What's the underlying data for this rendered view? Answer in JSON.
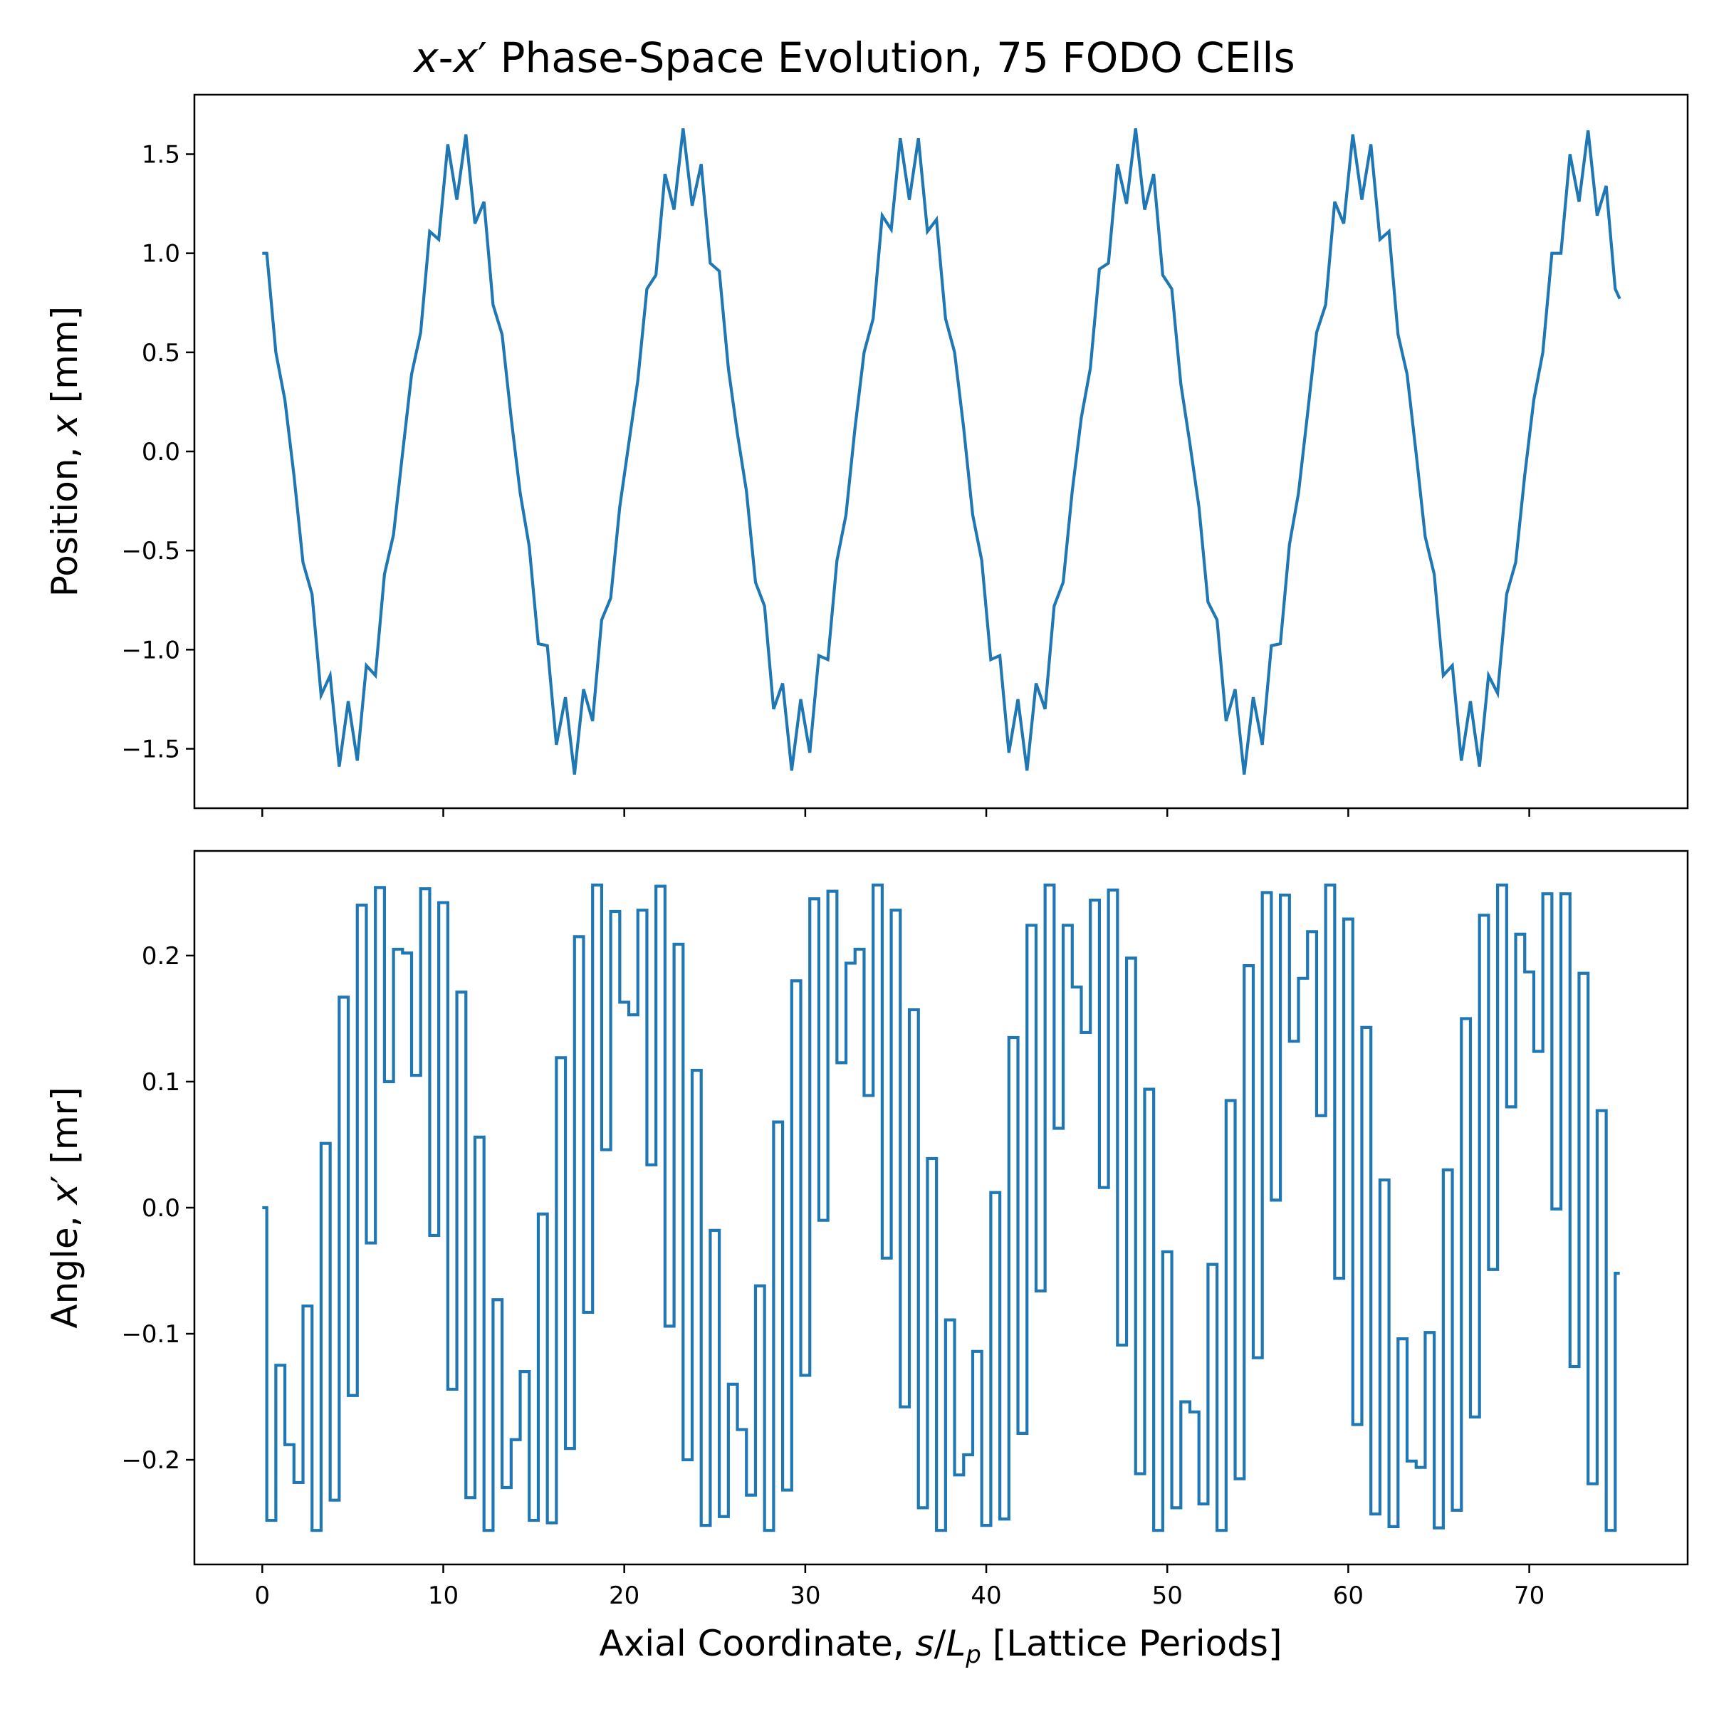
{
  "figure": {
    "title_parts": [
      "x",
      "-",
      "x",
      "′",
      " Phase-Space Evolution, 75 FODO CElls"
    ],
    "xlabel_parts": [
      "Axial Coordinate, ",
      "s",
      "/",
      "L",
      "p",
      " [Lattice Periods]"
    ]
  },
  "colors": {
    "series": "#1f77b4",
    "axes": "#000000",
    "background": "#ffffff"
  },
  "chart_data": [
    {
      "type": "line",
      "ylabel_parts": [
        "Position, ",
        "x",
        " [mm]"
      ],
      "xlim": [
        -3.75,
        78.75
      ],
      "ylim": [
        -1.8,
        1.8
      ],
      "xticks": [
        0,
        10,
        20,
        30,
        40,
        50,
        60,
        70
      ],
      "xtick_labels_visible": false,
      "yticks": [
        -1.5,
        -1.0,
        -0.5,
        0.0,
        0.5,
        1.0,
        1.5
      ],
      "ytick_labels": [
        "−1.5",
        "−1.0",
        "−0.5",
        "0.0",
        "0.5",
        "1.0",
        "1.5"
      ],
      "grid": false,
      "series": [
        {
          "x": [
            0,
            0.25,
            0.75,
            1.25,
            1.75,
            2.25,
            2.75,
            3.25,
            3.75,
            4.25,
            4.75,
            5.25,
            5.75,
            6.25,
            6.75,
            7.25,
            7.75,
            8.25,
            8.75,
            9.25,
            9.75,
            10.25,
            10.75,
            11.25,
            11.75,
            12.25,
            12.75,
            13.25,
            13.75,
            14.25,
            14.75,
            15.25,
            15.75,
            16.25,
            16.75,
            17.25,
            17.75,
            18.25,
            18.75,
            19.25,
            19.75,
            20.25,
            20.75,
            21.25,
            21.75,
            22.25,
            22.75,
            23.25,
            23.75,
            24.25,
            24.75,
            25.25,
            25.75,
            26.25,
            26.75,
            27.25,
            27.75,
            28.25,
            28.75,
            29.25,
            29.75,
            30.25,
            30.75,
            31.25,
            31.75,
            32.25,
            32.75,
            33.25,
            33.75,
            34.25,
            34.75,
            35.25,
            35.75,
            36.25,
            36.75,
            37.25,
            37.75,
            38.25,
            38.75,
            39.25,
            39.75,
            40.25,
            40.75,
            41.25,
            41.75,
            42.25,
            42.75,
            43.25,
            43.75,
            44.25,
            44.75,
            45.25,
            45.75,
            46.25,
            46.75,
            47.25,
            47.75,
            48.25,
            48.75,
            49.25,
            49.75,
            50.25,
            50.75,
            51.25,
            51.75,
            52.25,
            52.75,
            53.25,
            53.75,
            54.25,
            54.75,
            55.25,
            55.75,
            56.25,
            56.75,
            57.25,
            57.75,
            58.25,
            58.75,
            59.25,
            59.75,
            60.25,
            60.75,
            61.25,
            61.75,
            62.25,
            62.75,
            63.25,
            63.75,
            64.25,
            64.75,
            65.25,
            65.75,
            66.25,
            66.75,
            67.25,
            67.75,
            68.25,
            68.75,
            69.25,
            69.75,
            70.25,
            70.75,
            71.25,
            71.75,
            72.25,
            72.75,
            73.25,
            73.75,
            74.25,
            74.75,
            75
          ],
          "values": [
            1.0,
            1.0,
            0.5,
            0.26,
            -0.12,
            -0.56,
            -0.72,
            -1.23,
            -1.13,
            -1.59,
            -1.26,
            -1.56,
            -1.08,
            -1.13,
            -0.62,
            -0.42,
            -0.01,
            0.39,
            0.6,
            1.11,
            1.07,
            1.55,
            1.27,
            1.6,
            1.15,
            1.26,
            0.74,
            0.59,
            0.17,
            -0.21,
            -0.48,
            -0.97,
            -0.98,
            -1.48,
            -1.24,
            -1.63,
            -1.2,
            -1.36,
            -0.85,
            -0.74,
            -0.28,
            0.04,
            0.36,
            0.82,
            0.89,
            1.4,
            1.22,
            1.63,
            1.24,
            1.45,
            0.95,
            0.91,
            0.42,
            0.09,
            -0.2,
            -0.66,
            -0.78,
            -1.3,
            -1.17,
            -1.61,
            -1.25,
            -1.52,
            -1.03,
            -1.05,
            -0.55,
            -0.32,
            0.12,
            0.5,
            0.67,
            1.19,
            1.12,
            1.58,
            1.27,
            1.58,
            1.11,
            1.17,
            0.67,
            0.5,
            0.12,
            -0.32,
            -0.55,
            -1.05,
            -1.03,
            -1.52,
            -1.25,
            -1.61,
            -1.17,
            -1.3,
            -0.78,
            -0.66,
            -0.2,
            0.17,
            0.42,
            0.92,
            0.95,
            1.45,
            1.25,
            1.63,
            1.22,
            1.4,
            0.89,
            0.82,
            0.34,
            0.04,
            -0.28,
            -0.76,
            -0.85,
            -1.36,
            -1.2,
            -1.63,
            -1.24,
            -1.48,
            -0.98,
            -0.97,
            -0.47,
            -0.21,
            0.19,
            0.6,
            0.74,
            1.26,
            1.15,
            1.6,
            1.27,
            1.55,
            1.07,
            1.11,
            0.59,
            0.39,
            -0.01,
            -0.43,
            -0.62,
            -1.13,
            -1.08,
            -1.56,
            -1.26,
            -1.59,
            -1.13,
            -1.22,
            -0.72,
            -0.56,
            -0.12,
            0.26,
            0.5,
            1.0,
            1.0,
            1.5,
            1.26,
            1.62,
            1.19,
            1.34,
            0.82,
            0.77
          ]
        }
      ]
    },
    {
      "type": "line",
      "drawstyle": "steps-post",
      "ylabel_parts": [
        "Angle, ",
        "x",
        "′",
        " [mr]"
      ],
      "xlim": [
        -3.75,
        78.75
      ],
      "ylim": [
        -0.283,
        0.283
      ],
      "xticks": [
        0,
        10,
        20,
        30,
        40,
        50,
        60,
        70
      ],
      "xtick_labels": [
        "0",
        "10",
        "20",
        "30",
        "40",
        "50",
        "60",
        "70"
      ],
      "yticks": [
        -0.2,
        -0.1,
        0.0,
        0.1,
        0.2
      ],
      "ytick_labels": [
        "−0.2",
        "−0.1",
        "0.0",
        "0.1",
        "0.2"
      ],
      "grid": false,
      "series": [
        {
          "x": [
            0,
            0.25,
            0.75,
            1.25,
            1.75,
            2.25,
            2.75,
            3.25,
            3.75,
            4.25,
            4.75,
            5.25,
            5.75,
            6.25,
            6.75,
            7.25,
            7.75,
            8.25,
            8.75,
            9.25,
            9.75,
            10.25,
            10.75,
            11.25,
            11.75,
            12.25,
            12.75,
            13.25,
            13.75,
            14.25,
            14.75,
            15.25,
            15.75,
            16.25,
            16.75,
            17.25,
            17.75,
            18.25,
            18.75,
            19.25,
            19.75,
            20.25,
            20.75,
            21.25,
            21.75,
            22.25,
            22.75,
            23.25,
            23.75,
            24.25,
            24.75,
            25.25,
            25.75,
            26.25,
            26.75,
            27.25,
            27.75,
            28.25,
            28.75,
            29.25,
            29.75,
            30.25,
            30.75,
            31.25,
            31.75,
            32.25,
            32.75,
            33.25,
            33.75,
            34.25,
            34.75,
            35.25,
            35.75,
            36.25,
            36.75,
            37.25,
            37.75,
            38.25,
            38.75,
            39.25,
            39.75,
            40.25,
            40.75,
            41.25,
            41.75,
            42.25,
            42.75,
            43.25,
            43.75,
            44.25,
            44.75,
            45.25,
            45.75,
            46.25,
            46.75,
            47.25,
            47.75,
            48.25,
            48.75,
            49.25,
            49.75,
            50.25,
            50.75,
            51.25,
            51.75,
            52.25,
            52.75,
            53.25,
            53.75,
            54.25,
            54.75,
            55.25,
            55.75,
            56.25,
            56.75,
            57.25,
            57.75,
            58.25,
            58.75,
            59.25,
            59.75,
            60.25,
            60.75,
            61.25,
            61.75,
            62.25,
            62.75,
            63.25,
            63.75,
            64.25,
            64.75,
            65.25,
            65.75,
            66.25,
            66.75,
            67.25,
            67.75,
            68.25,
            68.75,
            69.25,
            69.75,
            70.25,
            70.75,
            71.25,
            71.75,
            72.25,
            72.75,
            73.25,
            73.75,
            74.25,
            74.75,
            75
          ],
          "values": [
            0.0,
            -0.248,
            -0.125,
            -0.188,
            -0.218,
            -0.078,
            -0.256,
            0.051,
            -0.232,
            0.167,
            -0.149,
            0.24,
            -0.028,
            0.254,
            0.1,
            0.205,
            0.202,
            0.105,
            0.253,
            -0.022,
            0.242,
            -0.144,
            0.171,
            -0.23,
            0.056,
            -0.256,
            -0.073,
            -0.222,
            -0.184,
            -0.13,
            -0.248,
            -0.005,
            -0.25,
            0.119,
            -0.191,
            0.215,
            -0.083,
            0.256,
            0.046,
            0.235,
            0.163,
            0.153,
            0.236,
            0.034,
            0.255,
            -0.094,
            0.209,
            -0.2,
            0.109,
            -0.252,
            -0.018,
            -0.245,
            -0.14,
            -0.176,
            -0.228,
            -0.062,
            -0.256,
            0.068,
            -0.224,
            0.18,
            -0.133,
            0.245,
            -0.01,
            0.251,
            0.115,
            0.194,
            0.205,
            0.089,
            0.256,
            -0.04,
            0.236,
            -0.158,
            0.157,
            -0.238,
            0.039,
            -0.256,
            -0.089,
            -0.212,
            -0.196,
            -0.114,
            -0.252,
            0.012,
            -0.247,
            0.135,
            -0.179,
            0.224,
            -0.066,
            0.256,
            0.063,
            0.224,
            0.175,
            0.139,
            0.244,
            0.016,
            0.252,
            -0.109,
            0.198,
            -0.211,
            0.094,
            -0.256,
            -0.035,
            -0.238,
            -0.154,
            -0.162,
            -0.235,
            -0.045,
            -0.256,
            0.085,
            -0.215,
            0.192,
            -0.119,
            0.25,
            0.006,
            0.248,
            0.132,
            0.182,
            0.219,
            0.073,
            0.256,
            -0.056,
            0.229,
            -0.172,
            0.143,
            -0.243,
            0.022,
            -0.253,
            -0.104,
            -0.201,
            -0.206,
            -0.099,
            -0.254,
            0.03,
            -0.24,
            0.15,
            -0.166,
            0.232,
            -0.049,
            0.256,
            0.08,
            0.217,
            0.187,
            0.124,
            0.249,
            -0.001,
            0.249,
            -0.126,
            0.186,
            -0.219,
            0.077,
            -0.256,
            -0.052,
            -0.052
          ]
        }
      ]
    }
  ]
}
